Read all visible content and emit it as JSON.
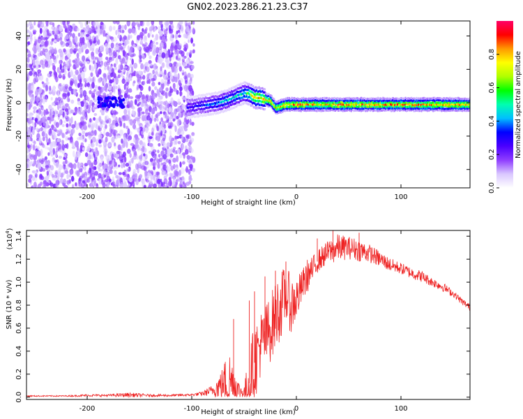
{
  "figure": {
    "title": "GN02.2023.286.21.23.C37"
  },
  "colorbar": {
    "label": "Normalized spectral amplitude",
    "ticks": [
      {
        "value": 0.0,
        "label": "0.0"
      },
      {
        "value": 0.2,
        "label": "0.2"
      },
      {
        "value": 0.4,
        "label": "0.4"
      },
      {
        "value": 0.6,
        "label": "0.6"
      },
      {
        "value": 0.8,
        "label": "0.8"
      }
    ],
    "range": [
      0,
      1
    ],
    "colors": [
      "#ffffff",
      "#d9c7ff",
      "#8f3dff",
      "#4a00ff",
      "#0000ff",
      "#00bfff",
      "#00ffb0",
      "#00ff00",
      "#b0ff00",
      "#ffff00",
      "#ff9900",
      "#ff0000",
      "#ff0066"
    ]
  },
  "chart_data": [
    {
      "type": "heatmap",
      "panel": "spectrogram",
      "xlabel": "Height of straight line (km)",
      "ylabel": "Frequency (Hz)",
      "xlim": [
        -258,
        166
      ],
      "ylim": [
        -51,
        49
      ],
      "xticks": [
        {
          "value": -200,
          "label": "-200"
        },
        {
          "value": -100,
          "label": "-100"
        },
        {
          "value": 0,
          "label": "0"
        },
        {
          "value": 100,
          "label": "100"
        }
      ],
      "yticks": [
        {
          "value": -40,
          "label": "-40"
        },
        {
          "value": -20,
          "label": "-20"
        },
        {
          "value": 0,
          "label": "0"
        },
        {
          "value": 20,
          "label": "20"
        },
        {
          "value": 40,
          "label": "40"
        }
      ],
      "noise_region": {
        "x": [
          -258,
          -98
        ],
        "frequency_range": [
          -51,
          49
        ],
        "amplitude": [
          0.05,
          0.2
        ]
      },
      "weak_cluster": {
        "x": [
          -190,
          -165
        ],
        "frequency": [
          -3,
          3
        ],
        "amplitude": 0.25
      },
      "ridge": {
        "x": [
          -105,
          -95,
          -85,
          -75,
          -65,
          -58,
          -50,
          -45,
          -40,
          -35,
          -30,
          -25,
          -20,
          -15,
          -10,
          -5,
          0,
          10,
          20,
          30,
          40,
          50,
          60,
          80,
          100,
          120,
          140,
          166
        ],
        "frequency": [
          -3,
          -2,
          -1,
          0,
          2,
          4,
          6,
          5,
          3,
          3,
          2,
          1,
          -3,
          -2,
          -1,
          -1,
          -1,
          -1,
          -1,
          -1,
          -1,
          -1,
          -1,
          -1,
          -1,
          -1,
          -1,
          -1
        ],
        "amplitude": [
          0.3,
          0.35,
          0.4,
          0.45,
          0.5,
          0.5,
          0.55,
          0.7,
          0.85,
          0.9,
          0.85,
          0.85,
          0.85,
          0.9,
          0.9,
          0.9,
          0.95,
          0.9,
          0.85,
          0.85,
          0.95,
          0.9,
          0.9,
          0.9,
          0.9,
          0.9,
          0.9,
          0.9
        ]
      }
    },
    {
      "type": "line",
      "panel": "snr",
      "xlabel": "Height of straight line (km)",
      "ylabel": "SNR (10 * v/v)",
      "scale_label": "(x10",
      "scale_exp": "4",
      "scale_suffix": ")",
      "xlim": [
        -258,
        166
      ],
      "ylim": [
        -0.02,
        1.45
      ],
      "color": "#ee2222",
      "xticks": [
        {
          "value": -200,
          "label": "-200"
        },
        {
          "value": -100,
          "label": "-100"
        },
        {
          "value": 0,
          "label": "0"
        },
        {
          "value": 100,
          "label": "100"
        }
      ],
      "yticks": [
        {
          "value": 0.0,
          "label": "0.0"
        },
        {
          "value": 0.2,
          "label": "0.2"
        },
        {
          "value": 0.4,
          "label": "0.4"
        },
        {
          "value": 0.6,
          "label": "0.6"
        },
        {
          "value": 0.8,
          "label": "0.8"
        },
        {
          "value": 1.0,
          "label": "1.0"
        },
        {
          "value": 1.2,
          "label": "1.2"
        },
        {
          "value": 1.4,
          "label": "1.4"
        }
      ],
      "series": [
        {
          "x": [
            -258,
            -240,
            -220,
            -200,
            -180,
            -160,
            -140,
            -120,
            -100,
            -90,
            -80,
            -70,
            -65,
            -60,
            -55,
            -50,
            -45,
            -40,
            -35,
            -30,
            -25,
            -20,
            -15,
            -10,
            -5,
            0,
            5,
            10,
            15,
            20,
            25,
            30,
            35,
            40,
            50,
            60,
            70,
            80,
            90,
            100,
            110,
            120,
            130,
            140,
            150,
            160,
            166
          ],
          "y": [
            0.01,
            0.01,
            0.01,
            0.015,
            0.015,
            0.02,
            0.015,
            0.015,
            0.02,
            0.03,
            0.06,
            0.12,
            0.15,
            0.12,
            0.06,
            0.04,
            0.12,
            0.3,
            0.45,
            0.5,
            0.6,
            0.7,
            0.8,
            0.9,
            0.8,
            0.85,
            0.95,
            1.05,
            1.1,
            1.18,
            1.22,
            1.26,
            1.28,
            1.3,
            1.3,
            1.28,
            1.25,
            1.2,
            1.15,
            1.12,
            1.08,
            1.05,
            1.0,
            0.96,
            0.9,
            0.82,
            0.78
          ],
          "spread": [
            0.005,
            0.005,
            0.005,
            0.01,
            0.01,
            0.02,
            0.01,
            0.01,
            0.01,
            0.02,
            0.05,
            0.15,
            0.3,
            0.2,
            0.08,
            0.05,
            0.3,
            0.35,
            0.3,
            0.3,
            0.3,
            0.3,
            0.3,
            0.25,
            0.25,
            0.2,
            0.15,
            0.15,
            0.12,
            0.1,
            0.1,
            0.1,
            0.12,
            0.12,
            0.1,
            0.1,
            0.08,
            0.07,
            0.06,
            0.05,
            0.05,
            0.05,
            0.04,
            0.04,
            0.03,
            0.03,
            0.03
          ]
        }
      ],
      "spikes": [
        {
          "x": -60,
          "y": 0.68
        },
        {
          "x": -45,
          "y": 0.84
        },
        {
          "x": -40,
          "y": 0.92
        },
        {
          "x": -30,
          "y": 1.05
        },
        {
          "x": -20,
          "y": 1.1
        },
        {
          "x": -10,
          "y": 1.18
        },
        {
          "x": 20,
          "y": 1.38
        },
        {
          "x": 35,
          "y": 1.45
        },
        {
          "x": 45,
          "y": 1.36
        },
        {
          "x": 60,
          "y": 1.43
        }
      ]
    }
  ]
}
